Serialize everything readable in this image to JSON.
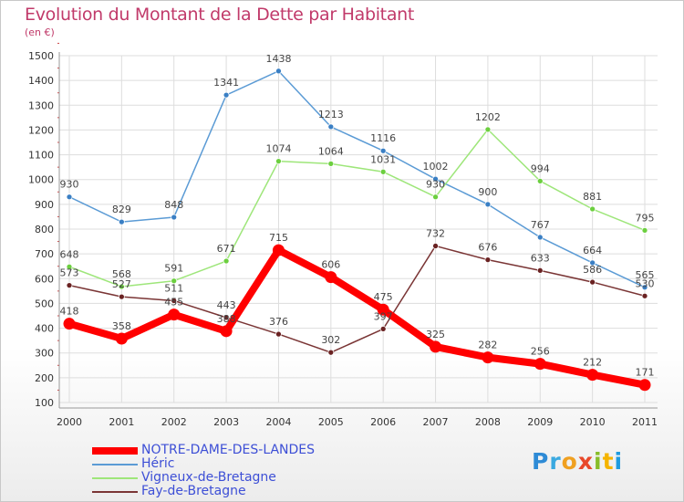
{
  "title": "Evolution du Montant de la Dette par Habitant",
  "subtitle": "(en €)",
  "logo_text": "Proxiti",
  "colors": {
    "title": "#c13a6a",
    "grid": "#dddddd",
    "axis_text": "#333333",
    "value_text": "#444444",
    "legend_text": "#3d4fd6"
  },
  "chart_data": {
    "type": "line",
    "categories": [
      "2000",
      "2001",
      "2002",
      "2003",
      "2004",
      "2005",
      "2006",
      "2007",
      "2008",
      "2009",
      "2010",
      "2011"
    ],
    "ylim": [
      100,
      1500
    ],
    "yticks": [
      100,
      200,
      300,
      400,
      500,
      600,
      700,
      800,
      900,
      1000,
      1100,
      1200,
      1300,
      1400,
      1500
    ],
    "grid": true,
    "legend_position": "bottom-left",
    "series": [
      {
        "name": "Héric",
        "color": "#5b9bd5",
        "marker": "#3a7fc4",
        "values": [
          930,
          829,
          848,
          1341,
          1438,
          1213,
          1116,
          1002,
          900,
          767,
          664,
          565
        ],
        "labels": [
          "930",
          "829",
          "848",
          "1341",
          "1438",
          "1213",
          "1116",
          "1002",
          "900",
          "767",
          "664",
          "565"
        ]
      },
      {
        "name": "Vigneux-de-Bretagne",
        "color": "#9ee67a",
        "marker": "#6ccf3f",
        "values": [
          648,
          568,
          591,
          671,
          1074,
          1064,
          1031,
          930,
          1202,
          994,
          881,
          795
        ],
        "labels": [
          "648",
          "568",
          "591",
          "671",
          "1074",
          "1064",
          "1031",
          "930",
          "1202",
          "994",
          "881",
          "795"
        ]
      },
      {
        "name": "Fay-de-Bretagne",
        "color": "#7a3535",
        "marker": "#6a2222",
        "values": [
          573,
          527,
          511,
          443,
          376,
          302,
          397,
          732,
          676,
          633,
          586,
          530
        ],
        "labels": [
          "573",
          "527",
          "511",
          "443",
          "376",
          "302",
          "397",
          "732",
          "676",
          "633",
          "586",
          "530"
        ]
      },
      {
        "name": "NOTRE-DAME-DES-LANDES",
        "color": "#ff0000",
        "marker": "#ff0000",
        "values": [
          418,
          358,
          455,
          388,
          715,
          606,
          475,
          325,
          282,
          256,
          212,
          171
        ],
        "labels": [
          "418",
          "358",
          "455",
          "388",
          "715",
          "606",
          "475",
          "325",
          "282",
          "256",
          "212",
          "171"
        ]
      }
    ],
    "legend_order": [
      "NOTRE-DAME-DES-LANDES",
      "Héric",
      "Vigneux-de-Bretagne",
      "Fay-de-Bretagne"
    ]
  }
}
